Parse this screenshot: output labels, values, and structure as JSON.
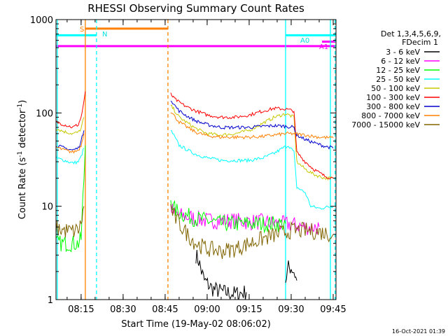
{
  "chart_data": {
    "type": "line",
    "title": "RHESSI Observing Summary Count Rates",
    "xlabel": "Start Time (19-May-02 08:06:02)",
    "ylabel_parts": [
      "Count Rate (s",
      "-1",
      " detector",
      "-1",
      ")"
    ],
    "ylabel": "Count Rate (s^-1 detector^-1)",
    "ylog": true,
    "ylim": [
      1,
      1000
    ],
    "xlim": [
      "08:06:02",
      "09:46:00"
    ],
    "y_ticks": [
      "1",
      "10",
      "100",
      "1000"
    ],
    "x_ticks": [
      "08:15",
      "08:30",
      "08:45",
      "09:00",
      "09:15",
      "09:30",
      "09:45"
    ],
    "timestamp": "16-Oct-2021 01:39",
    "legend": {
      "placement": "right",
      "header": [
        "Det 1,3,4,5,6,9,",
        "FDecim 1"
      ]
    },
    "flag_labels": {
      "S": "S",
      "N": "N",
      "A0": "A0",
      "A1": "A1"
    },
    "flags": [
      {
        "label": "S",
        "color": "#ff8000",
        "start": "08:16:30",
        "end": "08:46:00",
        "level": 800
      },
      {
        "label": "N",
        "color": "#00ffff",
        "start": "08:06:02",
        "end": "08:20:30",
        "level": 680
      },
      {
        "label": "A0",
        "color": "#00ffff",
        "start": "09:28:00",
        "end": "09:45:50",
        "level": 680
      },
      {
        "label": "A1",
        "color": "#ff00ff",
        "start": "09:41:00",
        "end": "09:45:50",
        "level": 580
      },
      {
        "label": "",
        "color": "#ff00ff",
        "start": "08:06:02",
        "end": "09:45:50",
        "level": 520
      }
    ],
    "vertical_markers": [
      {
        "time": "08:06:30",
        "color": "#00ffff",
        "style": "solid"
      },
      {
        "time": "08:16:30",
        "color": "#ff8000",
        "style": "solid"
      },
      {
        "time": "08:20:30",
        "color": "#00ffff",
        "style": "dashed"
      },
      {
        "time": "08:46:00",
        "color": "#ff8000",
        "style": "dashed"
      },
      {
        "time": "09:28:00",
        "color": "#00ffff",
        "style": "solid"
      },
      {
        "time": "09:44:00",
        "color": "#00ffff",
        "style": "solid"
      },
      {
        "time": "09:45:40",
        "color": "#00ffff",
        "style": "dashed"
      }
    ],
    "series": [
      {
        "name": "3 - 6 keV",
        "color": "#000000",
        "segments": [
          [
            [
              "08:56:00",
              3.0
            ],
            [
              "08:57:00",
              2.6
            ],
            [
              "08:58:00",
              2.0
            ],
            [
              "08:59:00",
              1.6
            ],
            [
              "09:02:00",
              1.3
            ],
            [
              "09:06:00",
              1.2
            ],
            [
              "09:10:00",
              1.15
            ],
            [
              "09:14:00",
              1.2
            ]
          ],
          [
            [
              "09:28:00",
              1.6
            ],
            [
              "09:29:00",
              2.2
            ],
            [
              "09:30:00",
              2.2
            ],
            [
              "09:31:00",
              2.0
            ],
            [
              "09:32:00",
              1.6
            ]
          ]
        ]
      },
      {
        "name": "6 - 12 keV",
        "color": "#ff00ff",
        "segments": [
          [
            [
              "08:47:00",
              10.0
            ],
            [
              "08:48:00",
              8.5
            ],
            [
              "08:50:00",
              8.0
            ],
            [
              "08:55:00",
              7.5
            ],
            [
              "09:00:00",
              7.0
            ],
            [
              "09:05:00",
              7.0
            ],
            [
              "09:10:00",
              7.0
            ],
            [
              "09:15:00",
              6.8
            ],
            [
              "09:20:00",
              6.8
            ],
            [
              "09:25:00",
              6.5
            ],
            [
              "09:30:00",
              6.4
            ],
            [
              "09:35:00",
              6.0
            ],
            [
              "09:40:00",
              6.0
            ]
          ]
        ]
      },
      {
        "name": "12 - 25 keV",
        "color": "#00ff00",
        "segments": [
          [
            [
              "08:06:02",
              4.0
            ],
            [
              "08:10:00",
              4.0
            ],
            [
              "08:14:00",
              4.0
            ],
            [
              "08:15:00",
              4.5
            ],
            [
              "08:16:00",
              20.0
            ],
            [
              "08:16:30",
              45.0
            ]
          ],
          [
            [
              "08:47:00",
              12.0
            ],
            [
              "08:48:00",
              9.5
            ],
            [
              "08:50:00",
              8.5
            ],
            [
              "08:55:00",
              7.5
            ],
            [
              "09:00:00",
              7.0
            ],
            [
              "09:05:00",
              6.5
            ],
            [
              "09:10:00",
              6.5
            ],
            [
              "09:15:00",
              6.5
            ],
            [
              "09:20:00",
              6.5
            ],
            [
              "09:25:00",
              6.5
            ],
            [
              "09:28:00",
              6.5
            ]
          ]
        ]
      },
      {
        "name": "25 - 50 keV",
        "color": "#00ffff",
        "segments": [
          [
            [
              "08:06:02",
              33.0
            ],
            [
              "08:09:00",
              31.0
            ],
            [
              "08:12:00",
              29.0
            ],
            [
              "08:14:00",
              30.0
            ],
            [
              "08:15:00",
              34.0
            ],
            [
              "08:16:00",
              42.0
            ]
          ],
          [
            [
              "08:47:00",
              65.0
            ],
            [
              "08:48:00",
              58.0
            ],
            [
              "08:50:00",
              45.0
            ],
            [
              "08:53:00",
              40.0
            ],
            [
              "08:56:00",
              36.0
            ],
            [
              "09:00:00",
              33.0
            ],
            [
              "09:05:00",
              31.0
            ],
            [
              "09:10:00",
              31.0
            ],
            [
              "09:15:00",
              31.0
            ],
            [
              "09:20:00",
              33.0
            ],
            [
              "09:24:00",
              37.0
            ],
            [
              "09:27:00",
              42.0
            ],
            [
              "09:29:00",
              45.0
            ],
            [
              "09:31:00",
              38.0
            ],
            [
              "09:32:00",
              16.0
            ],
            [
              "09:35:00",
              14.0
            ],
            [
              "09:37:00",
              10.0
            ],
            [
              "09:40:00",
              9.5
            ],
            [
              "09:45:00",
              10.0
            ]
          ]
        ]
      },
      {
        "name": "50 - 100 keV",
        "color": "#c8c800",
        "segments": [
          [
            [
              "08:06:02",
              68.0
            ],
            [
              "08:09:00",
              63.0
            ],
            [
              "08:12:00",
              60.0
            ],
            [
              "08:14:00",
              62.0
            ],
            [
              "08:15:00",
              68.0
            ],
            [
              "08:16:00",
              90.0
            ]
          ],
          [
            [
              "08:47:00",
              120.0
            ],
            [
              "08:48:00",
              110.0
            ],
            [
              "08:50:00",
              90.0
            ],
            [
              "08:53:00",
              78.0
            ],
            [
              "08:56:00",
              68.0
            ],
            [
              "09:00:00",
              60.0
            ],
            [
              "09:05:00",
              58.0
            ],
            [
              "09:10:00",
              60.0
            ],
            [
              "09:15:00",
              65.0
            ],
            [
              "09:20:00",
              78.0
            ],
            [
              "09:24:00",
              90.0
            ],
            [
              "09:28:00",
              98.0
            ],
            [
              "09:31:00",
              90.0
            ],
            [
              "09:32:00",
              30.0
            ],
            [
              "09:35:00",
              25.0
            ],
            [
              "09:38:00",
              22.0
            ],
            [
              "09:42:00",
              20.0
            ],
            [
              "09:45:00",
              20.0
            ]
          ]
        ]
      },
      {
        "name": "100 - 300 keV",
        "color": "#ff0000",
        "segments": [
          [
            [
              "08:06:02",
              80.0
            ],
            [
              "08:09:00",
              75.0
            ],
            [
              "08:12:00",
              70.0
            ],
            [
              "08:14:00",
              75.0
            ],
            [
              "08:15:00",
              90.0
            ],
            [
              "08:16:00",
              130.0
            ],
            [
              "08:16:30",
              170.0
            ]
          ],
          [
            [
              "08:47:00",
              160.0
            ],
            [
              "08:48:00",
              145.0
            ],
            [
              "08:50:00",
              130.0
            ],
            [
              "08:53:00",
              115.0
            ],
            [
              "08:56:00",
              105.0
            ],
            [
              "09:00:00",
              95.0
            ],
            [
              "09:05:00",
              90.0
            ],
            [
              "09:10:00",
              90.0
            ],
            [
              "09:15:00",
              95.0
            ],
            [
              "09:20:00",
              105.0
            ],
            [
              "09:24:00",
              112.0
            ],
            [
              "09:28:00",
              110.0
            ],
            [
              "09:31:00",
              105.0
            ],
            [
              "09:32:00",
              38.0
            ],
            [
              "09:35:00",
              30.0
            ],
            [
              "09:38:00",
              25.0
            ],
            [
              "09:42:00",
              21.0
            ],
            [
              "09:45:00",
              20.0
            ]
          ]
        ]
      },
      {
        "name": "300 - 800 keV",
        "color": "#0000cc",
        "segments": [
          [
            [
              "08:06:02",
              45.0
            ],
            [
              "08:09:00",
              42.0
            ],
            [
              "08:12:00",
              40.0
            ],
            [
              "08:14:00",
              42.0
            ],
            [
              "08:15:00",
              50.0
            ],
            [
              "08:16:00",
              65.0
            ]
          ],
          [
            [
              "08:47:00",
              140.0
            ],
            [
              "08:48:00",
              125.0
            ],
            [
              "08:50:00",
              105.0
            ],
            [
              "08:53:00",
              92.0
            ],
            [
              "08:56:00",
              82.0
            ],
            [
              "09:00:00",
              75.0
            ],
            [
              "09:05:00",
              70.0
            ],
            [
              "09:10:00",
              70.0
            ],
            [
              "09:15:00",
              70.0
            ],
            [
              "09:20:00",
              72.0
            ],
            [
              "09:24:00",
              73.0
            ],
            [
              "09:28:00",
              72.0
            ],
            [
              "09:31:00",
              70.0
            ],
            [
              "09:32:00",
              58.0
            ],
            [
              "09:35:00",
              52.0
            ],
            [
              "09:38:00",
              48.0
            ],
            [
              "09:42:00",
              44.0
            ],
            [
              "09:45:00",
              42.0
            ]
          ]
        ]
      },
      {
        "name": "800 - 7000 keV",
        "color": "#ff8000",
        "segments": [
          [
            [
              "08:06:02",
              43.0
            ],
            [
              "08:09:00",
              40.0
            ],
            [
              "08:12:00",
              38.0
            ],
            [
              "08:14:00",
              40.0
            ],
            [
              "08:15:00",
              45.0
            ],
            [
              "08:16:00",
              60.0
            ]
          ],
          [
            [
              "08:47:00",
              105.0
            ],
            [
              "08:48:00",
              95.0
            ],
            [
              "08:50:00",
              80.0
            ],
            [
              "08:53:00",
              70.0
            ],
            [
              "08:56:00",
              62.0
            ],
            [
              "09:00:00",
              57.0
            ],
            [
              "09:05:00",
              55.0
            ],
            [
              "09:10:00",
              55.0
            ],
            [
              "09:15:00",
              55.0
            ],
            [
              "09:20:00",
              56.0
            ],
            [
              "09:24:00",
              58.0
            ],
            [
              "09:28:00",
              60.0
            ],
            [
              "09:31:00",
              60.0
            ],
            [
              "09:35:00",
              58.0
            ],
            [
              "09:40:00",
              55.0
            ],
            [
              "09:45:00",
              54.0
            ]
          ]
        ]
      },
      {
        "name": "7000 - 15000 keV",
        "color": "#806400",
        "segments": [
          [
            [
              "08:06:02",
              5.8
            ],
            [
              "08:09:00",
              5.5
            ],
            [
              "08:12:00",
              5.4
            ],
            [
              "08:14:00",
              5.6
            ],
            [
              "08:15:00",
              6.5
            ],
            [
              "08:16:00",
              10.0
            ]
          ],
          [
            [
              "08:47:00",
              10.0
            ],
            [
              "08:48:00",
              8.0
            ],
            [
              "08:50:00",
              6.5
            ],
            [
              "08:53:00",
              5.0
            ],
            [
              "08:56:00",
              4.0
            ],
            [
              "09:00:00",
              3.5
            ],
            [
              "09:05:00",
              3.3
            ],
            [
              "09:10:00",
              3.5
            ],
            [
              "09:15:00",
              4.0
            ],
            [
              "09:20:00",
              4.5
            ],
            [
              "09:25:00",
              5.0
            ],
            [
              "09:30:00",
              5.5
            ],
            [
              "09:35:00",
              5.5
            ],
            [
              "09:40:00",
              5.3
            ],
            [
              "09:45:00",
              5.0
            ]
          ]
        ]
      }
    ]
  }
}
